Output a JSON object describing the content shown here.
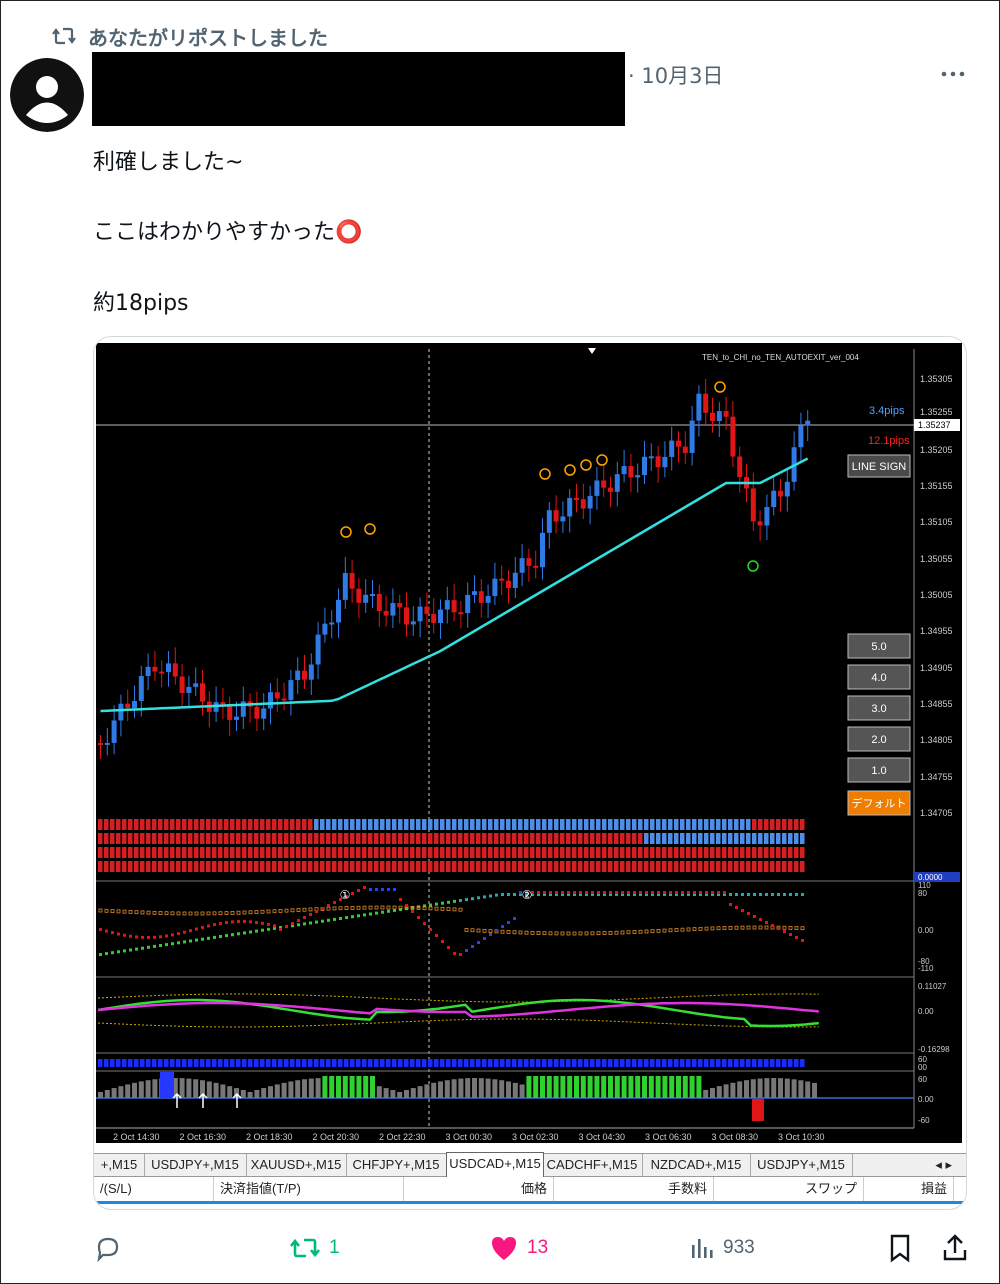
{
  "repost": {
    "label": "あなたがリポストしました"
  },
  "post": {
    "date": "· 10月3日",
    "text_line1": "利確しました~",
    "text_line2": "ここはわかりやすかった⭕",
    "text_line3": "約18pips"
  },
  "chart": {
    "indicator_title": "TEN_to_CHI_no_TEN_AUTOEXIT_ver_004",
    "pips_blue": "3.4pips",
    "pips_red": "12.1pips",
    "line_sign_label": "LINE SIGN",
    "lot_buttons": [
      "5.0",
      "4.0",
      "3.0",
      "2.0",
      "1.0"
    ],
    "default_button": "デフォルト",
    "price_labels": [
      "1.35305",
      "1.35255",
      "1.35237",
      "1.35205",
      "1.35155",
      "1.35105",
      "1.35055",
      "1.35005",
      "1.34955",
      "1.34905",
      "1.34855",
      "1.34805",
      "1.34755",
      "1.34705"
    ],
    "current_price": "1.35237",
    "panel1_value": "0.0000",
    "panel2_labels": [
      "110",
      "80",
      "0.00",
      "-80",
      "-110"
    ],
    "panel3_labels": [
      "0.11027",
      "0.00",
      "-0.16298"
    ],
    "panel4_labels": [
      "60",
      "0.00",
      "-60"
    ],
    "panel4_top_labels": [
      "60",
      "00"
    ],
    "time_labels": [
      "2 Oct 14:30",
      "2 Oct 16:30",
      "2 Oct 18:30",
      "2 Oct 20:30",
      "2 Oct 22:30",
      "3 Oct 00:30",
      "3 Oct 02:30",
      "3 Oct 04:30",
      "3 Oct 06:30",
      "3 Oct 08:30",
      "3 Oct 10:30"
    ],
    "markers": [
      "①",
      "②"
    ]
  },
  "symbol_tabs": [
    {
      "label": "+,M15",
      "active": false
    },
    {
      "label": "USDJPY+,M15",
      "active": false
    },
    {
      "label": "XAUUSD+,M15",
      "active": false
    },
    {
      "label": "CHFJPY+,M15",
      "active": false
    },
    {
      "label": "USDCAD+,M15",
      "active": true
    },
    {
      "label": "CADCHF+,M15",
      "active": false
    },
    {
      "label": "NZDCAD+,M15",
      "active": false
    },
    {
      "label": "USDJPY+,M15",
      "active": false
    }
  ],
  "tab_arrows": "◂ ▸",
  "order_columns": [
    "/(S/L)",
    "決済指値(T/P)",
    "価格",
    "手数料",
    "スワップ",
    "損益"
  ],
  "actions": {
    "retweet_count": "1",
    "like_count": "13",
    "views_count": "933"
  },
  "colors": {
    "retweet": "#00ba7c",
    "like": "#f91880",
    "muted": "#536471",
    "bull": "#2f7ae5",
    "bear": "#e01515",
    "ma_line": "#33e0e0"
  },
  "icons": [
    "repost-icon",
    "more-icon",
    "reply-icon",
    "retweet-icon",
    "like-icon",
    "views-icon",
    "bookmark-icon",
    "share-icon"
  ]
}
